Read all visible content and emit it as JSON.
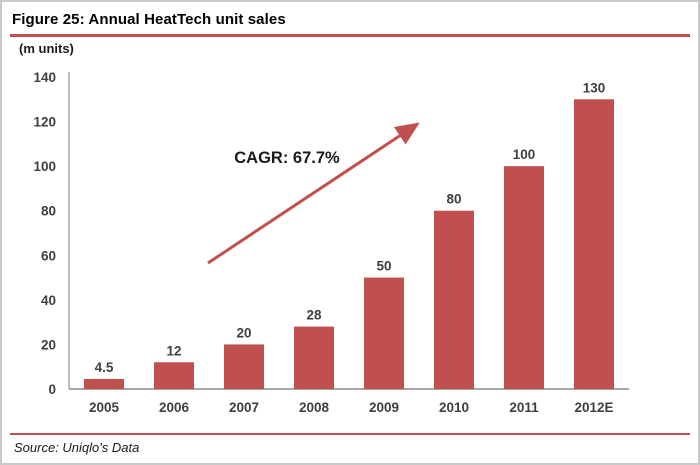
{
  "figure": {
    "title": "Figure 25: Annual HeatTech unit sales",
    "units_label": "(m units)",
    "source_text": "Source: Uniqlo's Data"
  },
  "colors": {
    "bar": "#c0504d",
    "accent": "#c0504d",
    "axis": "#a6a6a6",
    "label": "#3f3f3f",
    "annotation_text": "#1a1a1a"
  },
  "chart_data": {
    "type": "bar",
    "title": "Figure 25: Annual HeatTech unit sales",
    "categories": [
      "2005",
      "2006",
      "2007",
      "2008",
      "2009",
      "2010",
      "2011",
      "2012E"
    ],
    "values": [
      4.5,
      12,
      20,
      28,
      50,
      80,
      100,
      130
    ],
    "value_labels": [
      "4.5",
      "12",
      "20",
      "28",
      "50",
      "80",
      "100",
      "130"
    ],
    "xlabel": "",
    "ylabel": "(m units)",
    "ylim": [
      0,
      140
    ],
    "yticks": [
      0,
      20,
      40,
      60,
      80,
      100,
      120,
      140
    ],
    "grid": false,
    "legend": false,
    "annotation": "CAGR: 67.7%",
    "source": "Source: Uniqlo's Data"
  }
}
